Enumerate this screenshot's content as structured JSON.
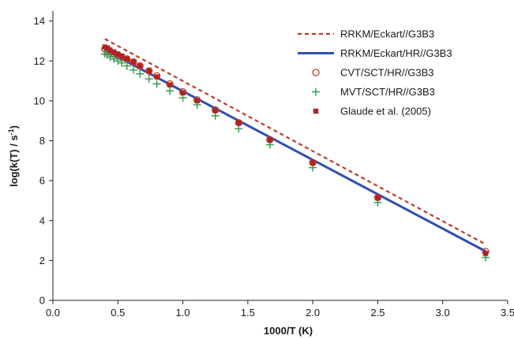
{
  "chart_data": {
    "type": "line",
    "title": "",
    "xlabel": "1000/T (K)",
    "ylabel_parts": [
      "log(k(T) / s",
      "-1",
      ")"
    ],
    "xlim": [
      0.0,
      3.5
    ],
    "ylim": [
      0,
      14.5
    ],
    "xticks": [
      "0.0",
      "0.5",
      "1.0",
      "1.5",
      "2.0",
      "2.5",
      "3.0",
      "3.5"
    ],
    "yticks": [
      "0",
      "2",
      "4",
      "6",
      "8",
      "10",
      "12",
      "14"
    ],
    "grid": false,
    "legend_position": "top-right",
    "series": [
      {
        "name": "RRKM/Eckart//G3B3",
        "style": "dashed-line",
        "color": "#c0392b",
        "x": [
          0.4,
          3.333
        ],
        "y": [
          13.1,
          2.8
        ]
      },
      {
        "name": "RRKM/Eckart/HR//G3B3",
        "style": "solid-line",
        "color": "#2f4fb5",
        "x": [
          0.4,
          3.333
        ],
        "y": [
          12.55,
          2.45
        ]
      },
      {
        "name": "CVT/SCT/HR//G3B3",
        "style": "open-circle",
        "color": "#c0392b",
        "x": [
          0.4,
          0.42,
          0.44,
          0.47,
          0.5,
          0.53,
          0.57,
          0.62,
          0.67,
          0.74,
          0.8,
          0.9,
          1.0,
          1.11,
          1.25,
          1.43,
          1.67,
          2.0,
          2.5,
          3.33
        ],
        "y": [
          12.6,
          12.5,
          12.45,
          12.35,
          12.3,
          12.2,
          12.1,
          11.95,
          11.75,
          11.5,
          11.25,
          10.85,
          10.45,
          10.05,
          9.55,
          8.9,
          8.05,
          6.9,
          5.15,
          2.45
        ]
      },
      {
        "name": "MVT/SCT/HR//G3B3",
        "style": "plus",
        "color": "#2e9a4a",
        "x": [
          0.4,
          0.42,
          0.44,
          0.47,
          0.5,
          0.53,
          0.57,
          0.62,
          0.67,
          0.74,
          0.8,
          0.9,
          1.0,
          1.11,
          1.25,
          1.43,
          1.67,
          2.0,
          2.5,
          3.33
        ],
        "y": [
          12.35,
          12.3,
          12.2,
          12.1,
          12.0,
          11.9,
          11.75,
          11.55,
          11.35,
          11.1,
          10.85,
          10.5,
          10.15,
          9.8,
          9.25,
          8.6,
          7.8,
          6.65,
          4.9,
          2.15
        ]
      },
      {
        "name": "Glaude et al. (2005)",
        "style": "filled-square",
        "color": "#b22222",
        "x": [
          0.4,
          0.42,
          0.44,
          0.47,
          0.5,
          0.53,
          0.57,
          0.62,
          0.67,
          0.74,
          0.8,
          0.9,
          1.0,
          1.11,
          1.25,
          1.43,
          1.67,
          2.0,
          2.5,
          3.33
        ],
        "y": [
          12.7,
          12.65,
          12.55,
          12.45,
          12.35,
          12.25,
          12.1,
          11.95,
          11.75,
          11.5,
          11.2,
          10.8,
          10.4,
          10.0,
          9.5,
          8.9,
          8.05,
          6.9,
          5.15,
          2.35
        ]
      }
    ]
  }
}
